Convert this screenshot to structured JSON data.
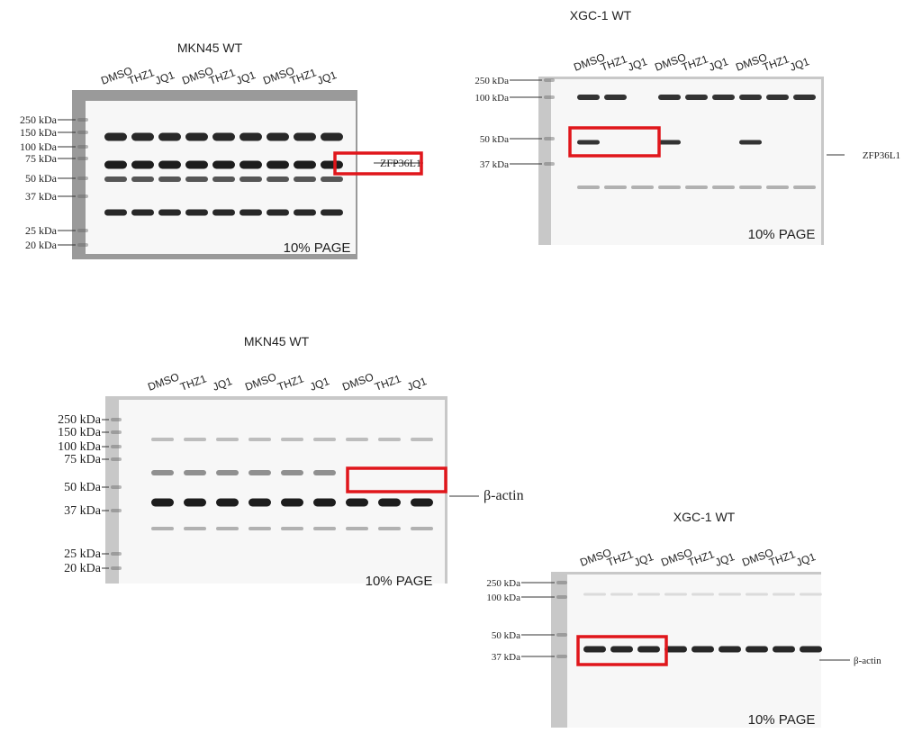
{
  "panels": [
    {
      "title": "MKN45 WT",
      "lanes": [
        "DMSO",
        "THZ1",
        "JQ1",
        "DMSO",
        "THZ1",
        "JQ1",
        "DMSO",
        "THZ1",
        "JQ1"
      ],
      "markers": [
        "250 kDa",
        "150 kDa",
        "100 kDa",
        "75 kDa",
        "50 kDa",
        "37 kDa",
        "25 kDa",
        "20 kDa"
      ],
      "target": "ZFP36L1",
      "gel": "10% PAGE"
    },
    {
      "title": "XGC-1 WT",
      "lanes": [
        "DMSO",
        "THZ1",
        "JQ1",
        "DMSO",
        "THZ1",
        "JQ1",
        "DMSO",
        "THZ1",
        "JQ1"
      ],
      "markers": [
        "250 kDa",
        "100 kDa",
        "50 kDa",
        "37 kDa"
      ],
      "target": "ZFP36L1",
      "gel": "10% PAGE"
    },
    {
      "title": "MKN45 WT",
      "lanes": [
        "DMSO",
        "THZ1",
        "JQ1",
        "DMSO",
        "THZ1",
        "JQ1",
        "DMSO",
        "THZ1",
        "JQ1"
      ],
      "markers": [
        "250 kDa",
        "150 kDa",
        "100 kDa",
        "75 kDa",
        "50 kDa",
        "37 kDa",
        "25 kDa",
        "20 kDa"
      ],
      "target": "β-actin",
      "gel": "10% PAGE"
    },
    {
      "title": "XGC-1 WT",
      "lanes": [
        "DMSO",
        "THZ1",
        "JQ1",
        "DMSO",
        "THZ1",
        "JQ1",
        "DMSO",
        "THZ1",
        "JQ1"
      ],
      "markers": [
        "250 kDa",
        "100 kDa",
        "50 kDa",
        "37 kDa"
      ],
      "target": "β-actin",
      "gel": "10% PAGE"
    }
  ]
}
